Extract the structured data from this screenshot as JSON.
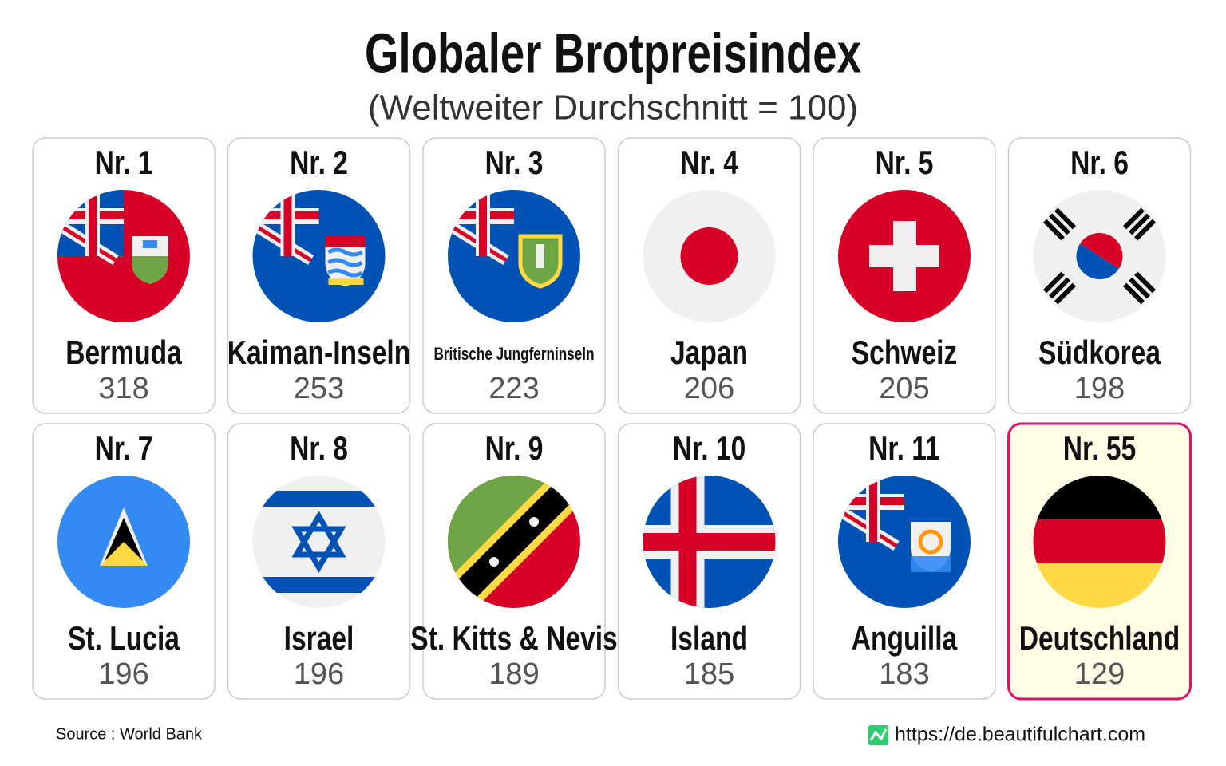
{
  "header": {
    "title": "Globaler Brotpreisindex",
    "subtitle": "(Weltweiter Durchschnitt = 100)"
  },
  "cards": [
    {
      "rank": "Nr. 1",
      "name": "Bermuda",
      "value": 318
    },
    {
      "rank": "Nr. 2",
      "name": "Kaiman-Inseln",
      "value": 253
    },
    {
      "rank": "Nr. 3",
      "name": "Britische Jungferninseln",
      "value": 223
    },
    {
      "rank": "Nr. 4",
      "name": "Japan",
      "value": 206
    },
    {
      "rank": "Nr. 5",
      "name": "Schweiz",
      "value": 205
    },
    {
      "rank": "Nr. 6",
      "name": "Südkorea",
      "value": 198
    },
    {
      "rank": "Nr. 7",
      "name": "St. Lucia",
      "value": 196
    },
    {
      "rank": "Nr. 8",
      "name": "Israel",
      "value": 196
    },
    {
      "rank": "Nr. 9",
      "name": "St. Kitts & Nevis",
      "value": 189
    },
    {
      "rank": "Nr. 10",
      "name": "Island",
      "value": 185
    },
    {
      "rank": "Nr. 11",
      "name": "Anguilla",
      "value": 183
    },
    {
      "rank": "Nr. 55",
      "name": "Deutschland",
      "value": 129
    }
  ],
  "footer": {
    "source": "Source : World Bank",
    "url": "https://de.beautifulchart.com"
  }
}
